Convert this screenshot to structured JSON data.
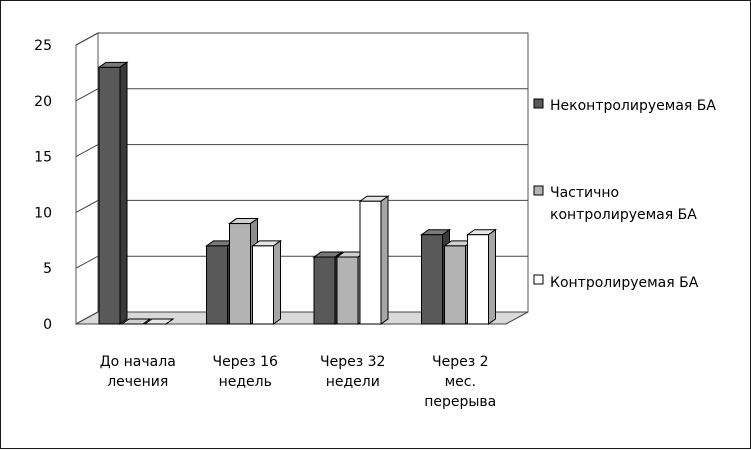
{
  "chart_data": {
    "type": "bar",
    "style": "3d-clustered-column",
    "categories": [
      [
        "До начала",
        "лечения"
      ],
      [
        "Через 16",
        "недель"
      ],
      [
        "Через 32",
        "недели"
      ],
      [
        "Через 2",
        "мес.",
        "перерыва"
      ]
    ],
    "series": [
      {
        "name": [
          "Неконтролируемая БА"
        ],
        "values": [
          23,
          7,
          6,
          8
        ],
        "color": "#595959",
        "side": "#3a3a3a",
        "top": "#7a7a7a"
      },
      {
        "name": [
          "Частично",
          "контролируемая БА"
        ],
        "values": [
          0,
          9,
          6,
          7
        ],
        "color": "#b3b3b3",
        "side": "#8c8c8c",
        "top": "#d0d0d0"
      },
      {
        "name": [
          "Контролируемая БА"
        ],
        "values": [
          0,
          7,
          11,
          8
        ],
        "color": "#ffffff",
        "side": "#a6a6a6",
        "top": "#e6e6e6"
      }
    ],
    "yticks": [
      "0",
      "5",
      "10",
      "15",
      "20",
      "25"
    ],
    "ylim": [
      0,
      25
    ],
    "grid": true,
    "legend": "right"
  }
}
